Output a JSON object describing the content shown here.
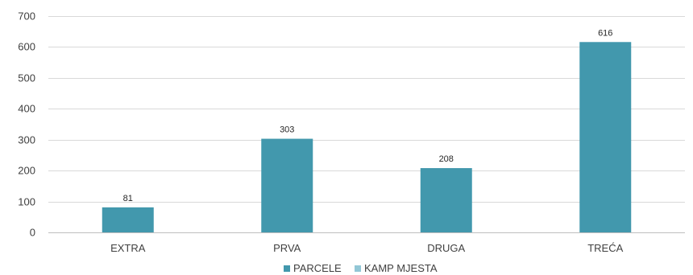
{
  "chart_data": {
    "type": "bar",
    "categories": [
      "EXTRA",
      "PRVA",
      "DRUGA",
      "TREĆA"
    ],
    "series": [
      {
        "name": "PARCELE",
        "color": "#4298AD",
        "values": [
          81,
          303,
          208,
          616
        ]
      },
      {
        "name": "KAMP MJESTA",
        "color": "#92C7D6",
        "values": [
          null,
          null,
          null,
          null
        ]
      }
    ],
    "ylim": [
      0,
      700
    ],
    "yticks": [
      0,
      100,
      200,
      300,
      400,
      500,
      600,
      700
    ],
    "grid": true,
    "legend": "bottom",
    "title": "",
    "xlabel": "",
    "ylabel": ""
  }
}
